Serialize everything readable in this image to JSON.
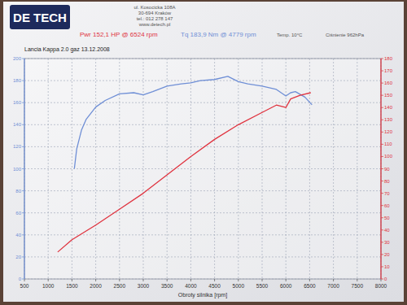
{
  "chart_data": {
    "type": "line",
    "title": "Lancia Kappa 2.0 gaz 13.12.2008",
    "header": {
      "logo": "DE TECH",
      "address": [
        "ul. Kosocicka 108A",
        "30-694 Kraków",
        "tel.: 012 278 147",
        "www.detech.pl"
      ]
    },
    "annotations": {
      "power": "Pwr 152,1 HP @ 6524 rpm",
      "torque": "Tq 183,9 Nm @ 4779 rpm",
      "temperature": "Temp. 10°C",
      "pressure": "Ciśnienie 962hPa"
    },
    "x_label": "Obroty silnika [rpm]",
    "xlim": [
      500,
      8000
    ],
    "xticks": [
      500,
      1000,
      1500,
      2000,
      2500,
      3000,
      3500,
      4000,
      4500,
      5000,
      5500,
      6000,
      6500,
      7000,
      7500,
      8000
    ],
    "ylim": [
      0,
      200
    ],
    "yticks": [
      0,
      20,
      40,
      60,
      80,
      100,
      120,
      140,
      160,
      180,
      200
    ],
    "y2lim": [
      0,
      180
    ],
    "y2ticks": [
      0,
      10,
      20,
      30,
      40,
      50,
      60,
      70,
      80,
      90,
      100,
      110,
      120,
      130,
      140,
      150,
      160,
      170,
      180
    ],
    "grid": true,
    "series": [
      {
        "color": "#6f8fd6",
        "x": [
          1550,
          1600,
          1700,
          1800,
          2000,
          2200,
          2500,
          2800,
          3000,
          3200,
          3500,
          3800,
          4000,
          4200,
          4500,
          4779,
          5000,
          5200,
          5500,
          5800,
          6000,
          6100,
          6200,
          6400,
          6550
        ],
        "values": [
          100,
          118,
          135,
          145,
          156,
          162,
          168,
          169,
          167,
          170,
          175,
          177,
          178,
          180,
          181,
          183.9,
          179,
          177,
          175,
          172,
          166,
          169,
          170,
          165,
          158
        ]
      },
      {
        "color": "#e0333f",
        "axis": "y2",
        "x": [
          1200,
          1500,
          2000,
          2500,
          3000,
          3500,
          4000,
          4500,
          5000,
          5500,
          5800,
          6000,
          6100,
          6300,
          6524
        ],
        "values": [
          22,
          32,
          44,
          57,
          70,
          85,
          100,
          114,
          126,
          136,
          142,
          140,
          147,
          150,
          152.1
        ]
      }
    ]
  }
}
